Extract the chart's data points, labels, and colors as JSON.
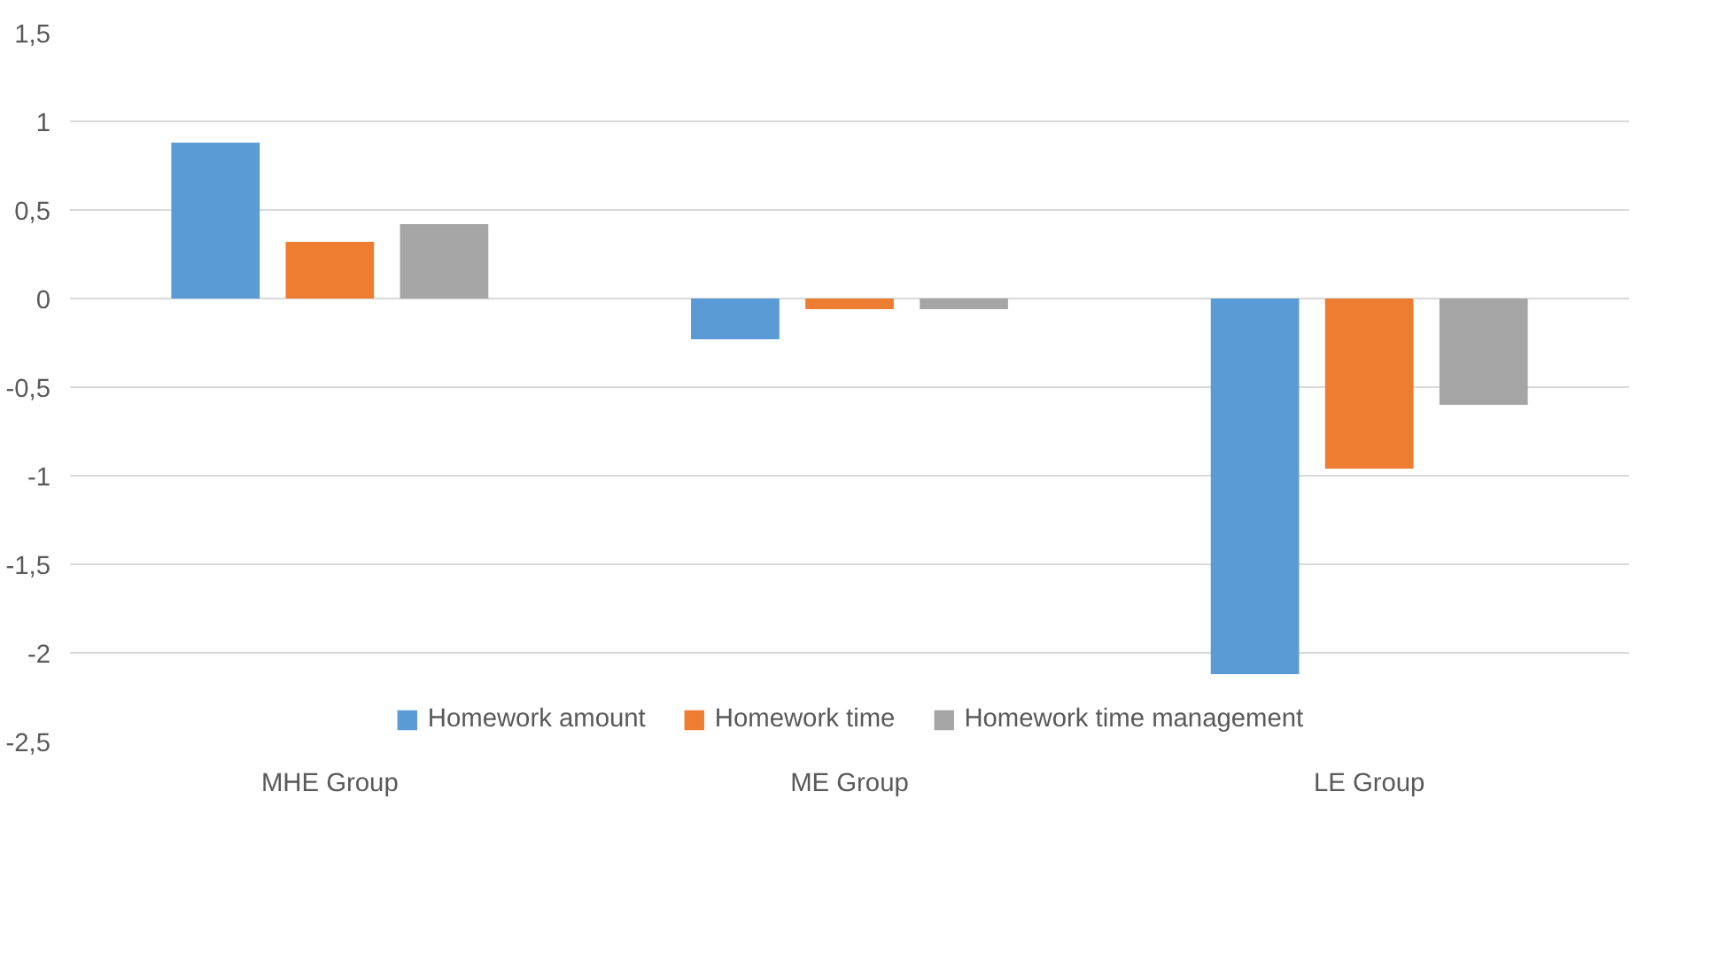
{
  "chart_data": {
    "type": "bar",
    "categories": [
      "MHE Group",
      "ME Group",
      "LE Group"
    ],
    "series": [
      {
        "name": "Homework amount",
        "color": "#5b9bd5",
        "values": [
          0.88,
          -0.23,
          -2.12
        ]
      },
      {
        "name": "Homework time",
        "color": "#ed7d31",
        "values": [
          0.32,
          -0.06,
          -0.96
        ]
      },
      {
        "name": "Homework time management",
        "color": "#a5a5a5",
        "values": [
          0.42,
          -0.06,
          -0.6
        ]
      }
    ],
    "ylim": [
      -2.5,
      1.5
    ],
    "yticks": [
      {
        "value": 1.5,
        "label": "1,5"
      },
      1,
      {
        "value": 0.5,
        "label": "0,5"
      },
      0,
      {
        "value": -0.5,
        "label": "-0,5"
      },
      -1,
      {
        "value": -1.5,
        "label": "-1,5"
      },
      -2,
      {
        "value": -2.5,
        "label": "-2,5"
      }
    ],
    "grid": "y",
    "legend": "bottom"
  }
}
